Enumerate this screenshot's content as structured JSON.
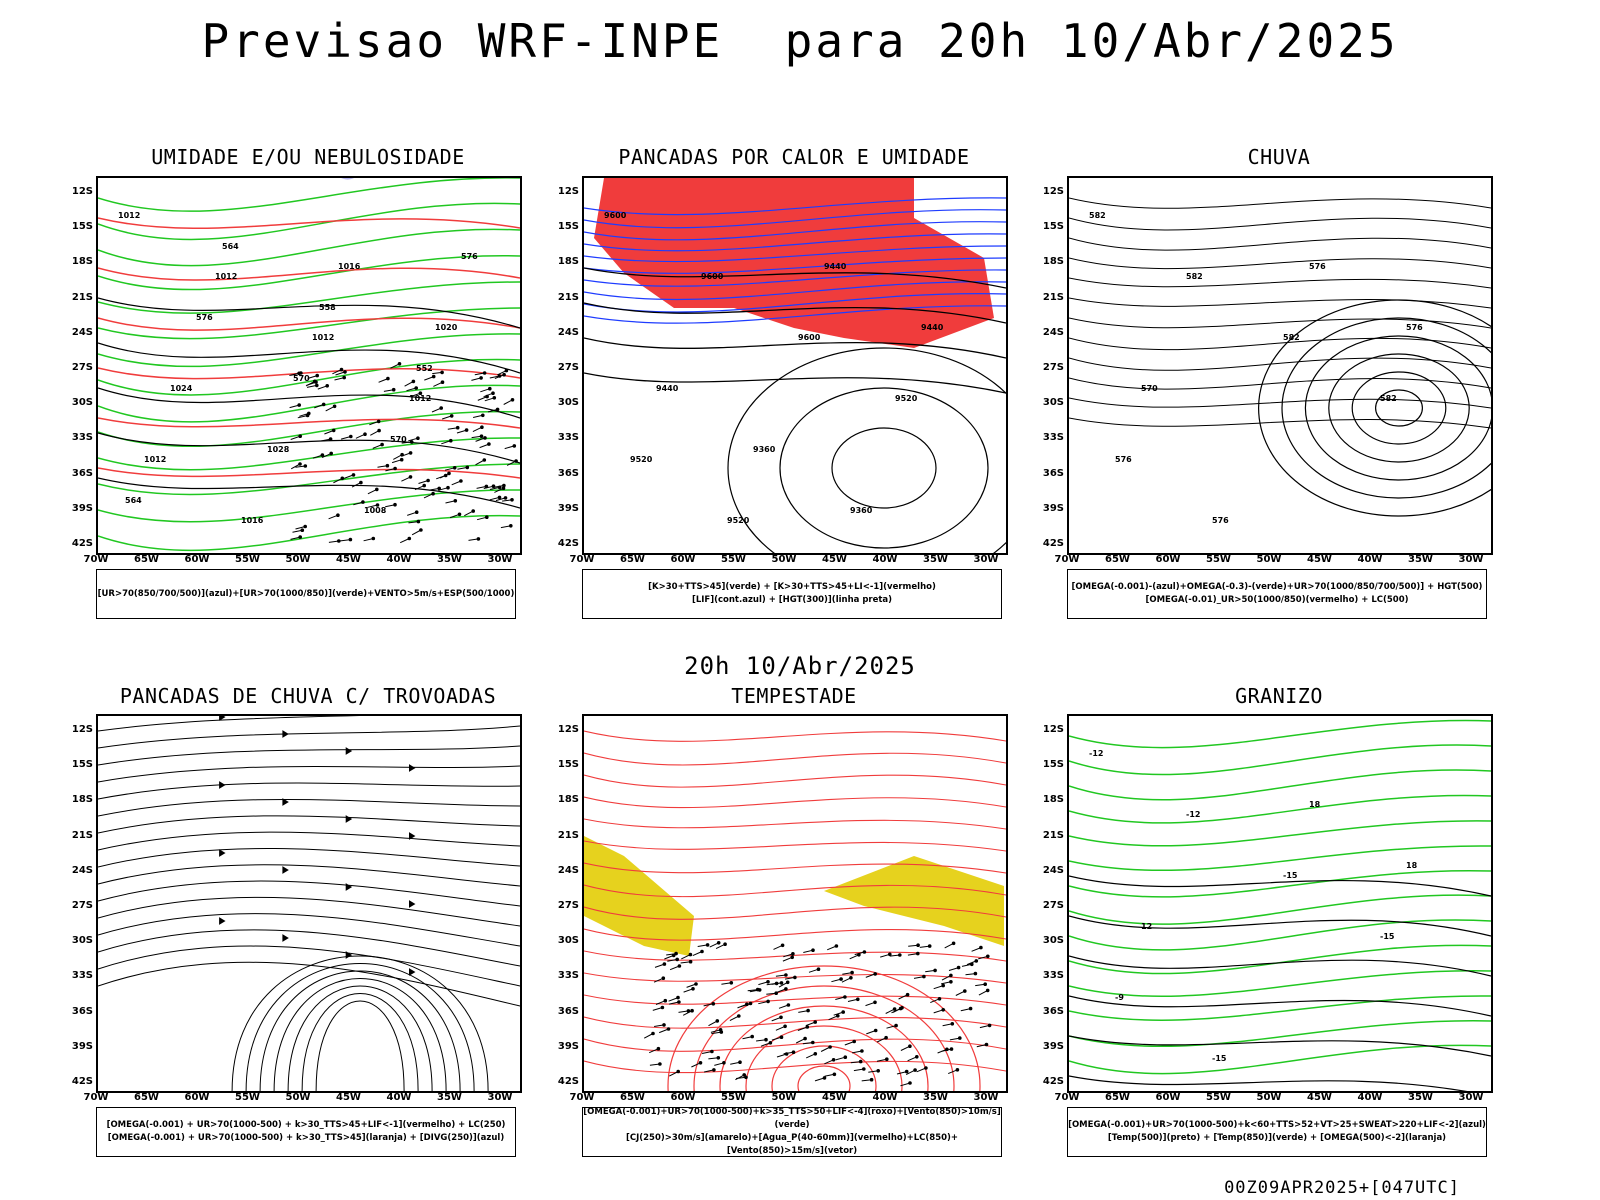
{
  "main_title": "Previsao WRF-INPE  para 20h 10/Abr/2025",
  "sub_title": "20h 10/Abr/2025",
  "footer": "00Z09APR2025+[047UTC]",
  "axes": {
    "lat_labels": [
      "12S",
      "15S",
      "18S",
      "21S",
      "24S",
      "27S",
      "30S",
      "33S",
      "36S",
      "39S",
      "42S"
    ],
    "lon_labels": [
      "70W",
      "65W",
      "60W",
      "55W",
      "50W",
      "45W",
      "40W",
      "35W",
      "30W"
    ]
  },
  "colors": {
    "red": "#f03c3c",
    "green": "#21c721",
    "blue": "#1e3cff",
    "lavender": "#aaaaee",
    "darkgreen": "#1f4f4f",
    "yellow": "#e6d21e",
    "orange": "#f08228",
    "purple": "#9600dc"
  },
  "chart_data": [
    {
      "type": "heatmap",
      "title": "UMIDADE E/OU NEBULOSIDADE",
      "legend_lines": [
        "[UR>70(850/700/500)](azul)+[UR>70(1000/850)](verde)+VENTO>5m/s+ESP(500/1000)"
      ],
      "contour_labels": [
        "1012",
        "1012",
        "1012",
        "1012",
        "1012",
        "1016",
        "1016",
        "1020",
        "1024",
        "1028",
        "1008",
        "576",
        "576",
        "570",
        "570",
        "564",
        "564",
        "558",
        "552"
      ],
      "x_range": [
        -70,
        -30
      ],
      "y_range": [
        -42,
        -10
      ]
    },
    {
      "type": "heatmap",
      "title": "PANCADAS POR CALOR E UMIDADE",
      "legend_lines": [
        "[K>30+TTS>45](verde)  +  [K>30+TTS>45+LI<-1](vermelho)",
        "[LIF](cont.azul)  +  [HGT(300)](linha preta)"
      ],
      "contour_labels": [
        "9600",
        "9600",
        "9600",
        "9520",
        "9520",
        "9520",
        "9440",
        "9440",
        "9440",
        "9360",
        "9360"
      ],
      "x_range": [
        -70,
        -30
      ],
      "y_range": [
        -42,
        -10
      ]
    },
    {
      "type": "heatmap",
      "title": "CHUVA",
      "legend_lines": [
        "[OMEGA(-0.001)-(azul)+OMEGA(-0.3)-(verde)+UR>70(1000/850/700/500)]  +  HGT(500)",
        "[OMEGA(-0.01)_UR>50(1000/850)(vermelho)  +  LC(500)"
      ],
      "contour_labels": [
        "582",
        "582",
        "582",
        "582",
        "576",
        "576",
        "576",
        "576",
        "570"
      ],
      "x_range": [
        -70,
        -30
      ],
      "y_range": [
        -42,
        -10
      ]
    },
    {
      "type": "heatmap",
      "title": "PANCADAS DE CHUVA C/ TROVOADAS",
      "legend_lines": [
        "[OMEGA(-0.001)  +  UR>70(1000-500)  +  k>30_TTS>45+LIF<-1](vermelho)  +  LC(250)",
        "[OMEGA(-0.001)  +  UR>70(1000-500)  +  k>30_TTS>45](laranja)  +  [DIVG(250)](azul)"
      ],
      "contour_labels": [],
      "x_range": [
        -70,
        -30
      ],
      "y_range": [
        -42,
        -10
      ]
    },
    {
      "type": "heatmap",
      "title": "TEMPESTADE",
      "legend_lines": [
        "[OMEGA(-0.001)+UR>70(1000-500)+k>35_TTS>50+LIF<-4](roxo)+[Vento(850)>10m/s](verde)",
        "[CJ(250)>30m/s](amarelo)+[Agua_P(40-60mm)](vermelho)+LC(850)+[Vento(850)>15m/s](vetor)"
      ],
      "contour_labels": [],
      "x_range": [
        -70,
        -30
      ],
      "y_range": [
        -42,
        -10
      ]
    },
    {
      "type": "heatmap",
      "title": "GRANIZO",
      "legend_lines": [
        "[OMEGA(-0.001)+UR>70(1000-500)+k<60+TTS>52+VT>25+SWEAT>220+LIF<-2](azul)",
        "[Temp(500)](preto)  +  [Temp(850)](verde)  +  [OMEGA(500)<-2](laranja)"
      ],
      "contour_labels": [
        "-12",
        "-12",
        "-15",
        "-15",
        "-9",
        "-15",
        "18",
        "18",
        "12"
      ],
      "x_range": [
        -70,
        -30
      ],
      "y_range": [
        -42,
        -10
      ]
    }
  ]
}
